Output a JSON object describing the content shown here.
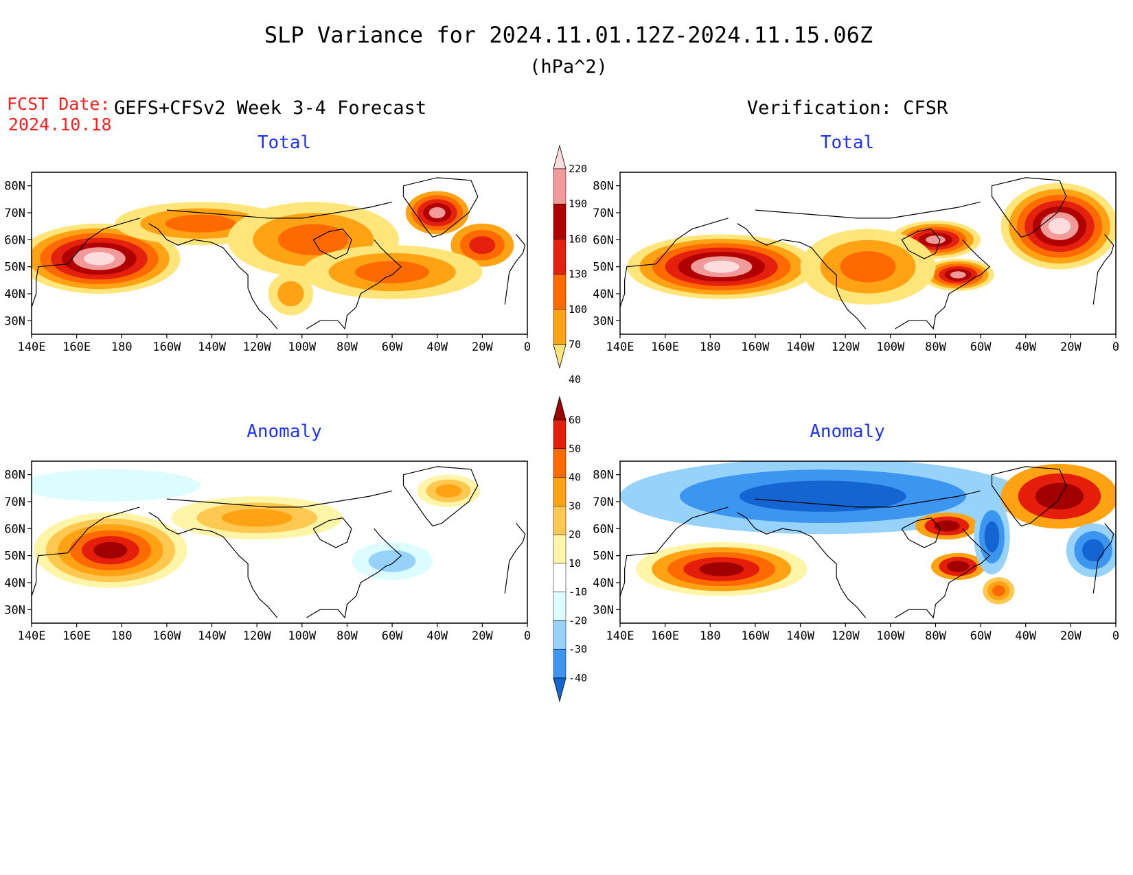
{
  "header": {
    "title": "SLP Variance for 2024.11.01.12Z-2024.11.15.06Z",
    "units": "(hPa^2)",
    "fcst_label": "FCST Date:",
    "fcst_date": "2024.10.18",
    "forecast_title": "GEFS+CFSv2 Week 3-4 Forecast",
    "verification_title": "Verification: CFSR"
  },
  "panels": [
    {
      "id": "fcst-total",
      "subtitle": "Total",
      "field": "total"
    },
    {
      "id": "verif-total",
      "subtitle": "Total",
      "field": "total"
    },
    {
      "id": "fcst-anomaly",
      "subtitle": "Anomaly",
      "field": "anomaly"
    },
    {
      "id": "verif-anomaly",
      "subtitle": "Anomaly",
      "field": "anomaly"
    }
  ],
  "axes": {
    "lat_labels": [
      "80N",
      "70N",
      "60N",
      "50N",
      "40N",
      "30N"
    ],
    "lat_values": [
      80,
      70,
      60,
      50,
      40,
      30
    ],
    "lon_labels": [
      "140E",
      "160E",
      "180",
      "160W",
      "140W",
      "120W",
      "100W",
      "80W",
      "60W",
      "40W",
      "20W",
      "0"
    ],
    "lon_values": [
      140,
      160,
      180,
      200,
      220,
      240,
      260,
      280,
      300,
      320,
      340,
      360
    ],
    "lat_range": [
      25,
      85
    ],
    "lon_range": [
      140,
      360
    ]
  },
  "colorbars": {
    "total": {
      "levels": [
        "220",
        "190",
        "160",
        "130",
        "100",
        "70",
        "40"
      ],
      "colors": [
        "#fcdcdc",
        "#f09a9a",
        "#b00000",
        "#e4200e",
        "#ff6a00",
        "#ffa314",
        "#ffe57a"
      ]
    },
    "anomaly": {
      "levels": [
        "60",
        "50",
        "40",
        "30",
        "20",
        "10",
        "-10",
        "-20",
        "-30",
        "-40"
      ],
      "colors": [
        "#a00000",
        "#e41e0a",
        "#ff6a00",
        "#ffa314",
        "#ffc850",
        "#fff5a8",
        "#ffffff",
        "#dcfcff",
        "#96d2fa",
        "#3c96f0",
        "#1464d2"
      ]
    }
  },
  "fields": {
    "fcst_total": [
      {
        "lon": 170,
        "lat": 53,
        "rx": 36,
        "ry": 13,
        "levels": [
          "#ffe57a",
          "#ffa314",
          "#ff6a00",
          "#e4200e",
          "#b00000",
          "#f09a9a",
          "#fcdcdc"
        ]
      },
      {
        "lon": 215,
        "lat": 66,
        "rx": 38,
        "ry": 8,
        "levels": [
          "#ffe57a",
          "#ffa314",
          "#ff6a00"
        ]
      },
      {
        "lon": 265,
        "lat": 60,
        "rx": 38,
        "ry": 14,
        "levels": [
          "#ffe57a",
          "#ffa314",
          "#ff6a00"
        ]
      },
      {
        "lon": 320,
        "lat": 70,
        "rx": 14,
        "ry": 8,
        "levels": [
          "#ffa314",
          "#ff6a00",
          "#e4200e",
          "#b00000",
          "#f09a9a"
        ]
      },
      {
        "lon": 340,
        "lat": 58,
        "rx": 14,
        "ry": 8,
        "levels": [
          "#ffa314",
          "#ff6a00",
          "#e4200e"
        ]
      },
      {
        "lon": 300,
        "lat": 48,
        "rx": 40,
        "ry": 10,
        "levels": [
          "#ffe57a",
          "#ffa314",
          "#ff6a00"
        ]
      },
      {
        "lon": 255,
        "lat": 40,
        "rx": 10,
        "ry": 8,
        "levels": [
          "#ffe57a",
          "#ffa314"
        ]
      }
    ],
    "verif_total": [
      {
        "lon": 185,
        "lat": 50,
        "rx": 42,
        "ry": 12,
        "levels": [
          "#ffe57a",
          "#ffa314",
          "#ff6a00",
          "#e4200e",
          "#b00000",
          "#f09a9a",
          "#fcdcdc"
        ]
      },
      {
        "lon": 280,
        "lat": 60,
        "rx": 20,
        "ry": 7,
        "levels": [
          "#ffe57a",
          "#ffa314",
          "#ff6a00",
          "#e4200e",
          "#b00000",
          "#f09a9a"
        ]
      },
      {
        "lon": 290,
        "lat": 47,
        "rx": 16,
        "ry": 6,
        "levels": [
          "#ffe57a",
          "#ffa314",
          "#ff6a00",
          "#e4200e",
          "#b00000",
          "#f09a9a"
        ]
      },
      {
        "lon": 335,
        "lat": 65,
        "rx": 26,
        "ry": 16,
        "levels": [
          "#ffe57a",
          "#ffa314",
          "#ff6a00",
          "#e4200e",
          "#b00000",
          "#f09a9a",
          "#fcdcdc"
        ]
      },
      {
        "lon": 250,
        "lat": 50,
        "rx": 30,
        "ry": 14,
        "levels": [
          "#ffe57a",
          "#ffa314",
          "#ff6a00"
        ]
      }
    ],
    "fcst_anomaly": [
      {
        "lon": 175,
        "lat": 52,
        "rx": 34,
        "ry": 14,
        "levels": [
          "#fff5a8",
          "#ffc850",
          "#ffa314",
          "#ff6a00",
          "#e41e0a",
          "#a00000"
        ]
      },
      {
        "lon": 240,
        "lat": 64,
        "rx": 38,
        "ry": 8,
        "levels": [
          "#fff5a8",
          "#ffc850",
          "#ffa314"
        ]
      },
      {
        "lon": 325,
        "lat": 74,
        "rx": 14,
        "ry": 6,
        "levels": [
          "#fff5a8",
          "#ffc850",
          "#ffa314"
        ]
      },
      {
        "lon": 300,
        "lat": 48,
        "rx": 18,
        "ry": 7,
        "levels": [
          "#dcfcff",
          "#96d2fa"
        ]
      },
      {
        "lon": 175,
        "lat": 76,
        "rx": 40,
        "ry": 6,
        "levels": [
          "#dcfcff"
        ]
      }
    ],
    "verif_anomaly": [
      {
        "lon": 230,
        "lat": 72,
        "rx": 90,
        "ry": 14,
        "levels": [
          "#96d2fa",
          "#3c96f0",
          "#1464d2"
        ]
      },
      {
        "lon": 185,
        "lat": 45,
        "rx": 38,
        "ry": 10,
        "levels": [
          "#fff5a8",
          "#ffa314",
          "#ff6a00",
          "#e41e0a",
          "#a00000"
        ]
      },
      {
        "lon": 285,
        "lat": 61,
        "rx": 14,
        "ry": 5,
        "levels": [
          "#ffa314",
          "#e41e0a",
          "#a00000"
        ]
      },
      {
        "lon": 290,
        "lat": 46,
        "rx": 12,
        "ry": 5,
        "levels": [
          "#ffa314",
          "#e41e0a",
          "#a00000"
        ]
      },
      {
        "lon": 335,
        "lat": 72,
        "rx": 26,
        "ry": 12,
        "levels": [
          "#ffa314",
          "#e41e0a",
          "#a00000"
        ]
      },
      {
        "lon": 350,
        "lat": 52,
        "rx": 12,
        "ry": 10,
        "levels": [
          "#96d2fa",
          "#3c96f0",
          "#1464d2"
        ]
      },
      {
        "lon": 305,
        "lat": 57,
        "rx": 8,
        "ry": 14,
        "levels": [
          "#96d2fa",
          "#3c96f0",
          "#1464d2"
        ]
      },
      {
        "lon": 308,
        "lat": 37,
        "rx": 7,
        "ry": 5,
        "levels": [
          "#ffc850",
          "#ffa314",
          "#ff6a00"
        ]
      }
    ]
  }
}
